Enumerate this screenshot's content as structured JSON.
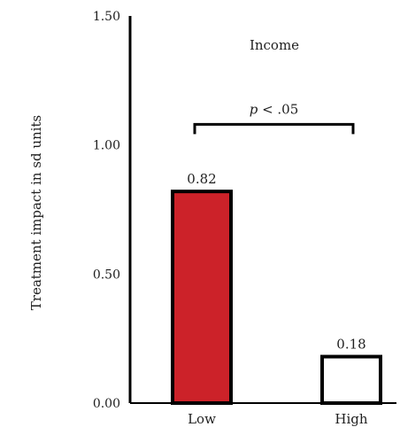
{
  "chart_data": {
    "type": "bar",
    "categories": [
      "Low",
      "High"
    ],
    "values": [
      0.82,
      0.18
    ],
    "data_labels": [
      "0.82",
      "0.18"
    ],
    "bar_colors": [
      "#cc2229",
      "#ffffff"
    ],
    "bar_outline": "#000000",
    "title": "Income",
    "ylabel": "Treatment impact in sd units",
    "ylim": [
      0,
      1.5
    ],
    "yticks": [
      0,
      0.5,
      1.0,
      1.5
    ],
    "ytick_labels": [
      "0.00",
      "0.50",
      "1.00",
      "1.50"
    ],
    "grid": false,
    "annotation": {
      "text_italic": "p",
      "text_rest": " < .05",
      "bracket_y": 1.08
    }
  }
}
